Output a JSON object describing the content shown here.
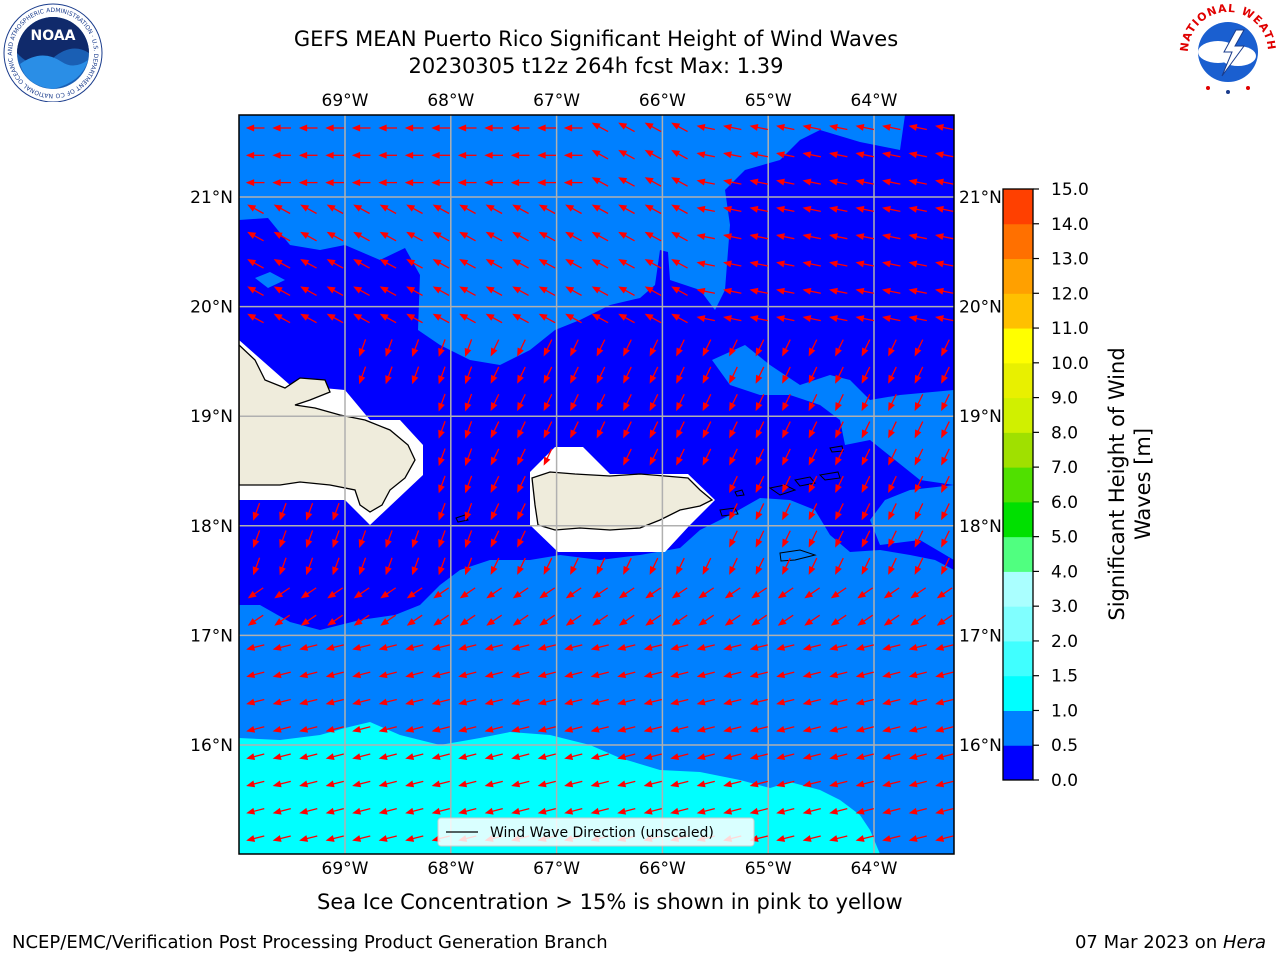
{
  "title": {
    "line1": "GEFS MEAN Puerto Rico Significant Height of Wind Waves",
    "line2": "20230305 t12z 264h fcst   Max: 1.39"
  },
  "map": {
    "lon_labels": [
      "69°W",
      "68°W",
      "67°W",
      "66°W",
      "65°W",
      "64°W"
    ],
    "lat_labels": [
      "21°N",
      "20°N",
      "19°N",
      "18°N",
      "17°N",
      "16°N"
    ],
    "legend_label": "Wind Wave Direction (unscaled)",
    "arrow_color": "#ff0000",
    "land_color": "#efecdc"
  },
  "colorbar": {
    "label_line1": "Significant Height of Wind",
    "label_line2": "Waves [m]",
    "ticks": [
      "0.0",
      "0.5",
      "1.0",
      "1.5",
      "2.0",
      "3.0",
      "4.0",
      "5.0",
      "6.0",
      "7.0",
      "8.0",
      "9.0",
      "10.0",
      "11.0",
      "12.0",
      "13.0",
      "14.0",
      "15.0"
    ],
    "colors": [
      "#0000ff",
      "#0080ff",
      "#00ffff",
      "#40ffff",
      "#80ffff",
      "#aaffff",
      "#50ff80",
      "#00e000",
      "#50e000",
      "#a0e000",
      "#d0f000",
      "#e8f000",
      "#ffff00",
      "#ffc000",
      "#ffa000",
      "#ff7000",
      "#ff4000",
      "#ff1000"
    ]
  },
  "caption": "Sea Ice Concentration > 15% is shown in pink to yellow",
  "footer": {
    "left": "NCEP/EMC/Verification Post Processing Product Generation Branch",
    "right_date": "07 Mar 2023 on ",
    "right_host": "Hera"
  },
  "logos": {
    "noaa_text": "NOAA",
    "noaa_ring": "NATIONAL OCEANIC AND ATMOSPHERIC ADMINISTRATION · U.S. DEPARTMENT OF COMMERCE",
    "nws_ring": "NATIONAL WEATHER SERVICE"
  }
}
